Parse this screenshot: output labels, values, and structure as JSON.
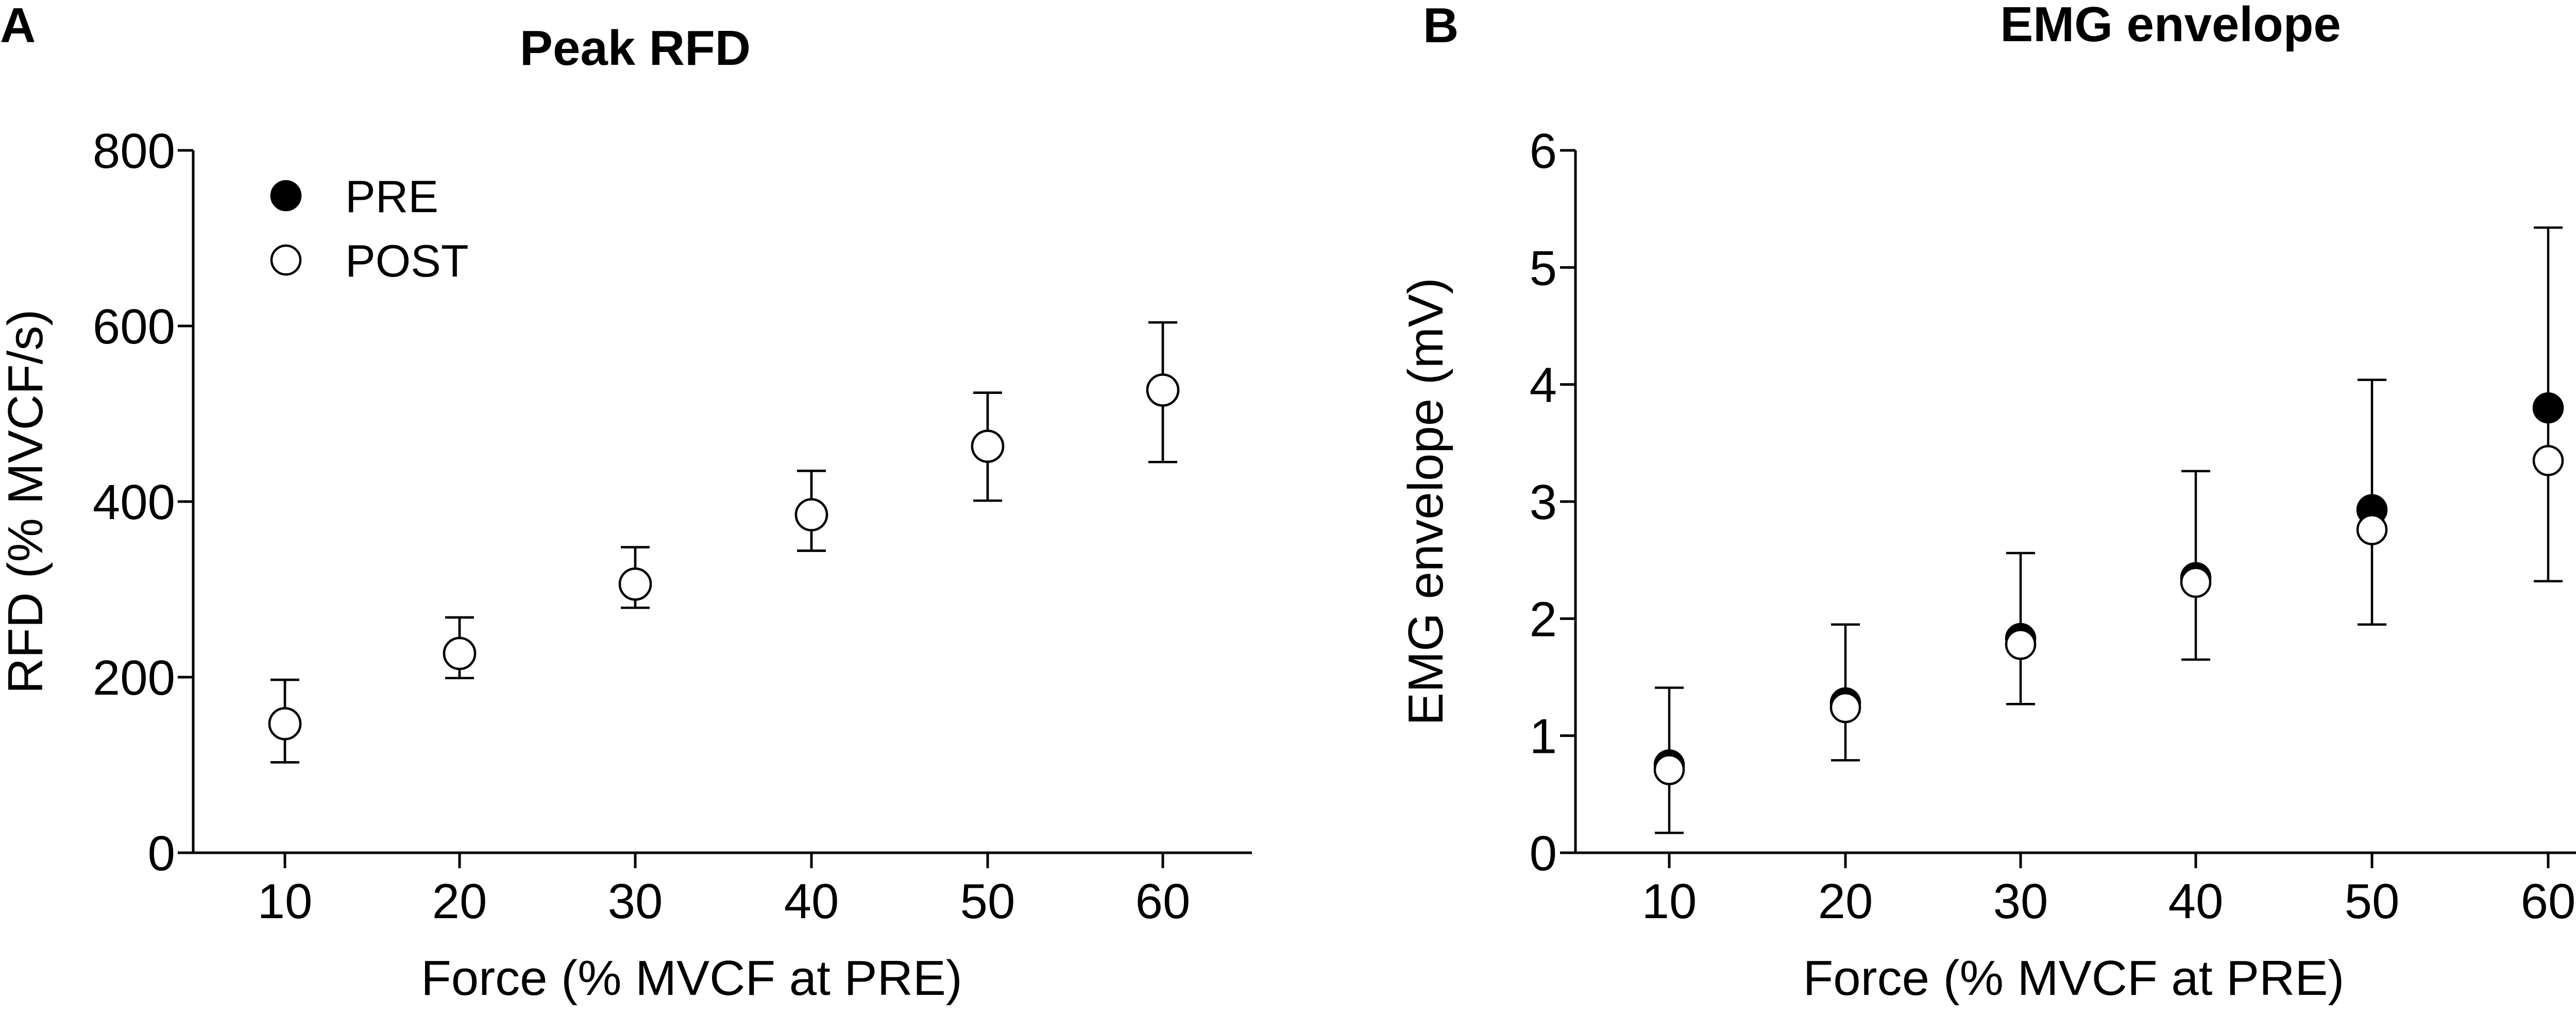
{
  "chart_data": [
    {
      "panel_letter": "A",
      "type": "scatter",
      "title": "Peak RFD",
      "xlabel": "Force (% MVCF at PRE)",
      "ylabel": "RFD (% MVCF/s)",
      "x": [
        10,
        20,
        30,
        40,
        50,
        60
      ],
      "xlim": [
        10,
        60
      ],
      "ylim": [
        0,
        800
      ],
      "yticks": [
        0,
        200,
        400,
        600,
        800
      ],
      "grid": false,
      "legend": {
        "position": "top-left",
        "entries": [
          {
            "label": "PRE",
            "marker": "filled-circle"
          },
          {
            "label": "POST",
            "marker": "open-circle"
          }
        ]
      },
      "series": [
        {
          "name": "PRE",
          "marker": "filled-circle",
          "values": [
            147,
            227,
            306,
            385,
            463,
            527
          ],
          "err_low": [
            103,
            199,
            279,
            344,
            401,
            445
          ],
          "err_high": [
            197,
            268,
            348,
            435,
            524,
            604
          ]
        },
        {
          "name": "POST",
          "marker": "open-circle",
          "values": [
            147,
            227,
            306,
            385,
            463,
            527
          ],
          "err_low": [
            103,
            199,
            279,
            344,
            401,
            445
          ],
          "err_high": [
            197,
            268,
            348,
            435,
            524,
            604
          ]
        }
      ]
    },
    {
      "panel_letter": "B",
      "type": "scatter",
      "title": "EMG envelope",
      "xlabel": "Force (% MVCF at PRE)",
      "ylabel": "EMG envelope (mV)",
      "x": [
        10,
        20,
        30,
        40,
        50,
        60
      ],
      "xlim": [
        10,
        60
      ],
      "ylim": [
        0,
        6
      ],
      "yticks": [
        0,
        1,
        2,
        3,
        4,
        5,
        6
      ],
      "grid": false,
      "series": [
        {
          "name": "PRE",
          "marker": "filled-circle",
          "values": [
            0.75,
            1.28,
            1.83,
            2.35,
            2.93,
            3.8
          ],
          "err_low": [
            0.17,
            0.79,
            1.27,
            1.65,
            1.95,
            2.32
          ],
          "err_high": [
            1.41,
            1.95,
            2.56,
            3.26,
            4.04,
            5.34
          ]
        },
        {
          "name": "POST",
          "marker": "open-circle",
          "values": [
            0.71,
            1.24,
            1.78,
            2.31,
            2.76,
            3.35
          ],
          "err_low": null,
          "err_high": null
        }
      ]
    }
  ]
}
